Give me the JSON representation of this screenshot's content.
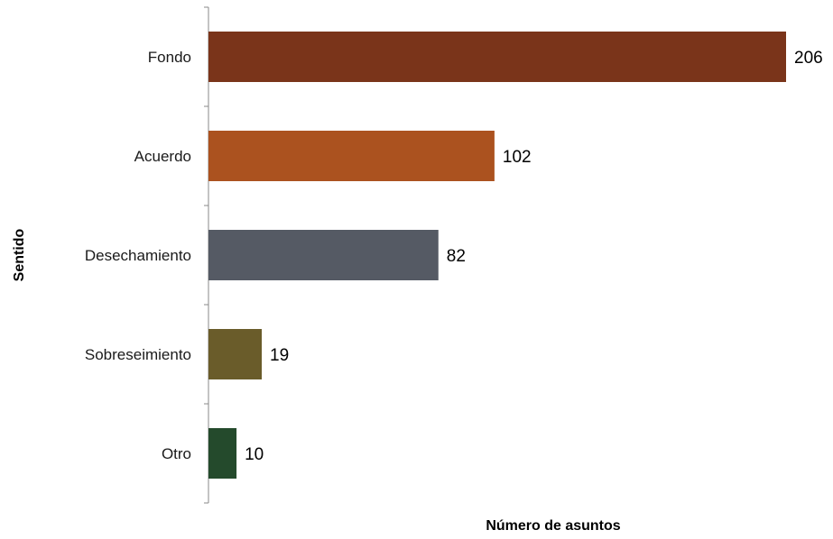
{
  "chart_data": {
    "type": "bar",
    "orientation": "horizontal",
    "categories": [
      "Fondo",
      "Acuerdo",
      "Desechamiento",
      "Sobreseimiento",
      "Otro"
    ],
    "values": [
      206,
      102,
      82,
      19,
      10
    ],
    "colors": [
      "#7a341a",
      "#ab521f",
      "#555a64",
      "#6a5c2a",
      "#244a2c"
    ],
    "xlabel": "Número de asuntos",
    "ylabel": "Sentido",
    "xlim": [
      0,
      206
    ],
    "grid": false,
    "legend": "none",
    "data_labels": true
  }
}
